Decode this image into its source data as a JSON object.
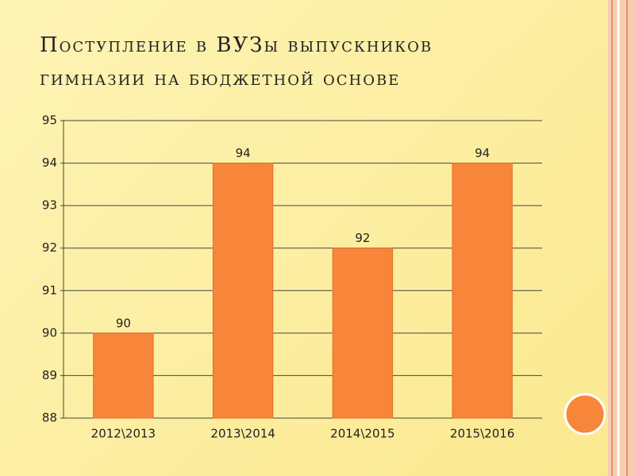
{
  "chart_data": {
    "type": "bar",
    "title": [
      "Поступление в ВУЗы выпускников",
      "гимназии на бюджетной основе"
    ],
    "categories": [
      "2012\\2013",
      "2013\\2014",
      "2014\\2015",
      "2015\\2016"
    ],
    "values": [
      90,
      94,
      92,
      94
    ],
    "color": "#f7863a",
    "ylim": [
      88,
      95
    ],
    "yticks": [
      88,
      89,
      90,
      91,
      92,
      93,
      94,
      95
    ],
    "grid": true
  }
}
